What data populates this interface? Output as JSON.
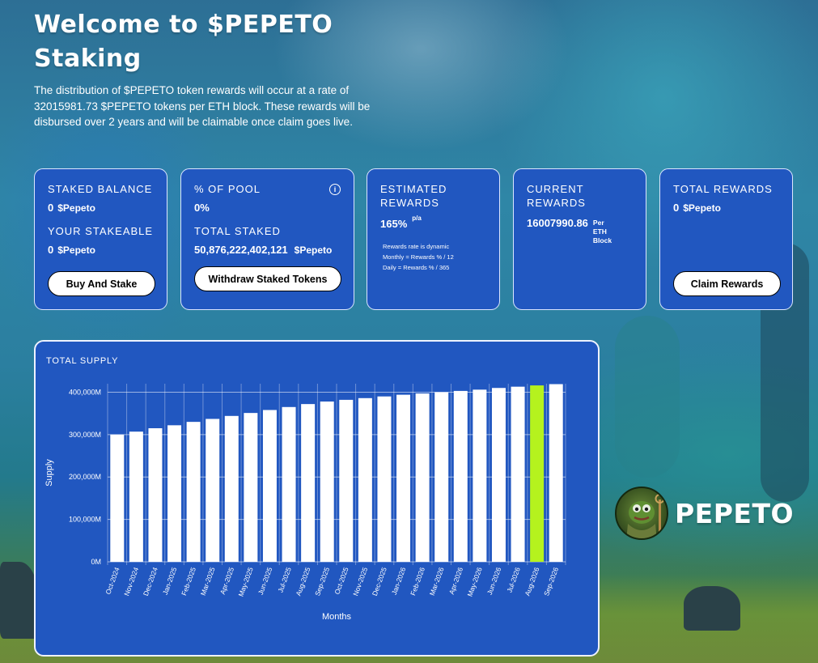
{
  "hero": {
    "title_line1": "Welcome to $PEPETO",
    "title_line2": "Staking",
    "description": "The distribution of $PEPETO token rewards will occur at a rate of 32015981.73 $PEPETO tokens per ETH block. These rewards will be disbursed over 2 years and will be claimable once claim goes live."
  },
  "cards": {
    "balance": {
      "staked_label": "Staked Balance",
      "staked_value": "0",
      "staked_unit": "$Pepeto",
      "stakeable_label": "Your Stakeable",
      "stakeable_value": "0",
      "stakeable_unit": "$Pepeto",
      "button": "Buy And Stake"
    },
    "pool": {
      "pool_label": "% of Pool",
      "pool_value": "0%",
      "info_icon": "info-icon",
      "total_label": "Total Staked",
      "total_value": "50,876,222,402,121",
      "total_unit": "$Pepeto",
      "button": "Withdraw Staked Tokens"
    },
    "estimated": {
      "label_line1": "Estimated",
      "label_line2": "Rewards",
      "value": "165%",
      "suffix": "p/a",
      "note1": "Rewards rate is dynamic",
      "note2": "Monthly = Rewards % / 12",
      "note3": "Daily = Rewards % / 365"
    },
    "current": {
      "label_line1": "Current",
      "label_line2": "Rewards",
      "value": "16007990.86",
      "per1": "Per",
      "per2": "ETH",
      "per3": "Block"
    },
    "total": {
      "label": "Total Rewards",
      "value": "0",
      "unit": "$Pepeto",
      "button": "Claim Rewards"
    }
  },
  "chart_data": {
    "type": "bar",
    "title": "TOTAL SUPPLY",
    "xlabel": "Months",
    "ylabel": "Supply",
    "ylim": [
      0,
      420000000
    ],
    "yticks": [
      0,
      100000000,
      200000000,
      300000000,
      400000000
    ],
    "ytick_labels": [
      "0M",
      "100,000M",
      "200,000M",
      "300,000M",
      "400,000M"
    ],
    "categories": [
      "Oct-2024",
      "Nov-2024",
      "Dec-2024",
      "Jan-2025",
      "Feb-2025",
      "Mar-2025",
      "Apr-2025",
      "May-2025",
      "Jun-2025",
      "Jul-2025",
      "Aug-2025",
      "Sep-2025",
      "Oct-2025",
      "Nov-2025",
      "Dec-2025",
      "Jan-2026",
      "Feb-2026",
      "Mar-2026",
      "Apr-2026",
      "May-2026",
      "Jun-2026",
      "Jul-2026",
      "Aug-2026",
      "Sep-2026"
    ],
    "values": [
      300000000,
      307000000,
      315000000,
      322000000,
      330000000,
      337000000,
      344000000,
      351000000,
      358000000,
      365000000,
      372000000,
      378000000,
      382000000,
      386000000,
      390000000,
      394000000,
      397000000,
      400000000,
      403000000,
      406000000,
      410000000,
      413000000,
      416000000,
      419000000
    ],
    "highlight_index": 22,
    "bar_color": "#ffffff",
    "highlight_color": "#b5f21e",
    "grid": true
  },
  "brand": {
    "name": "PEPETO"
  },
  "colors": {
    "card_bg": "#2157c0",
    "accent_green": "#b5f21e"
  }
}
